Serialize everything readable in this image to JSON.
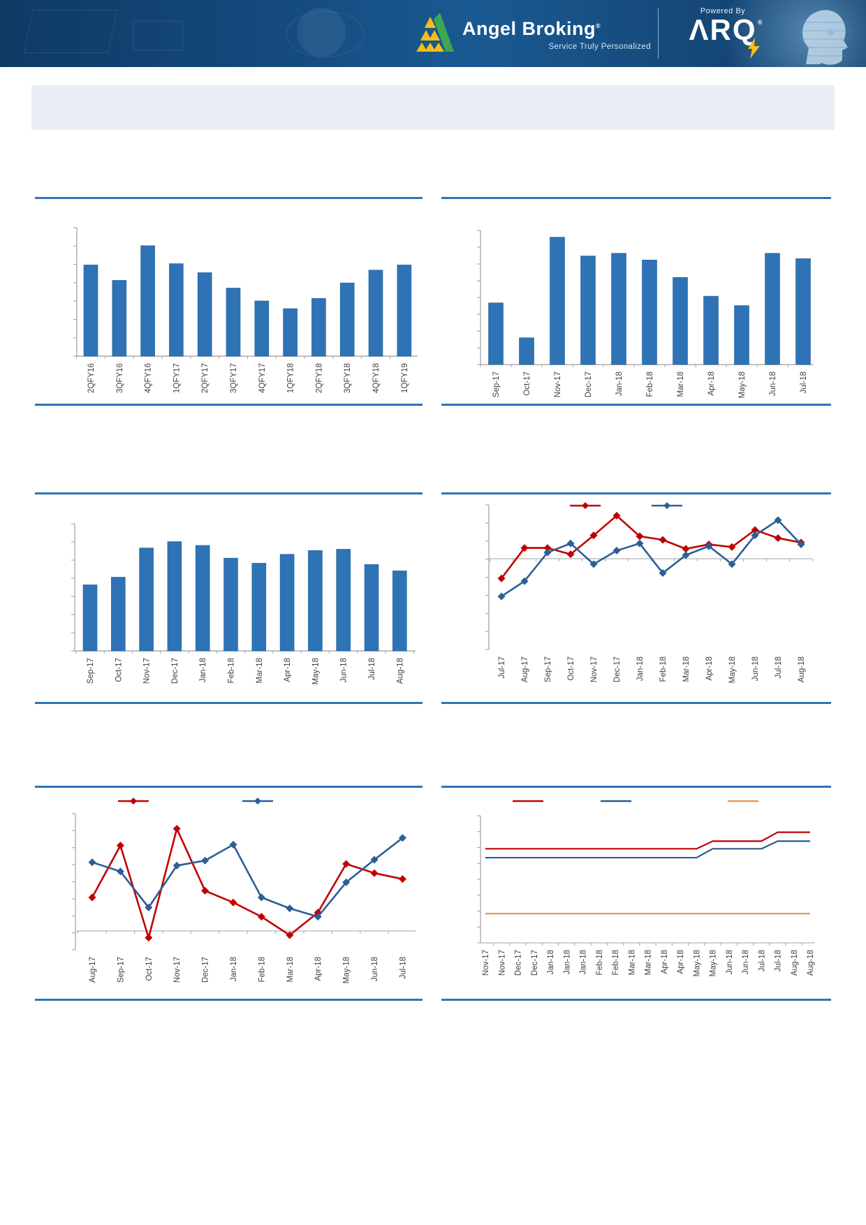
{
  "header": {
    "brand": "Angel Broking",
    "brand_reg": "®",
    "tagline": "Service Truly Personalized",
    "powered_by": "Powered By",
    "arq_text": "ΛRQ",
    "arq_reg": "®"
  },
  "colors": {
    "bar": "#2E73B5",
    "bar_edge": "#24619E",
    "red": "#C00000",
    "blue": "#2E5E95",
    "navy": "#305A85",
    "orange": "#E2995B",
    "divider": "#2E74B5",
    "axis": "#ABABAB",
    "zero_line": "#C0C0C0",
    "label": "#3F3F3F",
    "header_bg": "#14497C",
    "title_box": "#E9EFF5"
  },
  "chart_data": [
    {
      "id": "c1",
      "name": "quarterly-bar-chart",
      "type": "bar",
      "title": "",
      "categories": [
        "2QFY16",
        "3QFY16",
        "4QFY16",
        "1QFY17",
        "2QFY17",
        "3QFY17",
        "4QFY17",
        "1QFY18",
        "2QFY18",
        "3QFY18",
        "4QFY18",
        "1QFY19"
      ],
      "values_pct": [
        71,
        59,
        86,
        72,
        65,
        53,
        43,
        37,
        45,
        57,
        67,
        71
      ],
      "ylabel": "",
      "yticks_labeled": false,
      "grid": false
    },
    {
      "id": "c2",
      "name": "monthly-bar-chart-a",
      "type": "bar",
      "title": "",
      "categories": [
        "Sep-17",
        "Oct-17",
        "Nov-17",
        "Dec-17",
        "Jan-18",
        "Feb-18",
        "Mar-18",
        "Apr-18",
        "May-18",
        "Jun-18",
        "Jul-18"
      ],
      "values_pct": [
        46,
        20,
        95,
        81,
        83,
        78,
        65,
        51,
        44,
        83,
        79
      ],
      "ylabel": "",
      "yticks_labeled": false,
      "grid": false
    },
    {
      "id": "c3",
      "name": "monthly-bar-chart-b",
      "type": "bar",
      "title": "",
      "categories": [
        "Sep-17",
        "Oct-17",
        "Nov-17",
        "Dec-17",
        "Jan-18",
        "Feb-18",
        "Mar-18",
        "Apr-18",
        "May-18",
        "Jun-18",
        "Jul-18",
        "Aug-18"
      ],
      "values_pct": [
        52,
        58,
        81,
        86,
        83,
        73,
        69,
        76,
        79,
        80,
        68,
        63
      ],
      "ylabel": "",
      "yticks_labeled": false,
      "grid": false
    },
    {
      "id": "c4",
      "name": "dual-line-chart-a",
      "type": "line",
      "title": "",
      "categories": [
        "Jul-17",
        "Aug-17",
        "Sep-17",
        "Oct-17",
        "Nov-17",
        "Dec-17",
        "Jan-18",
        "Feb-18",
        "Mar-18",
        "Apr-18",
        "May-18",
        "Jun-18",
        "Jul-18",
        "Aug-18"
      ],
      "zero_line": true,
      "ylim_units": [
        -5.0,
        3.0
      ],
      "legend_labels_visible": false,
      "series": [
        {
          "name": "",
          "color_key": "red",
          "values": [
            -1.1,
            0.6,
            0.6,
            0.25,
            1.3,
            2.4,
            1.25,
            1.05,
            0.55,
            0.8,
            0.65,
            1.6,
            1.15,
            0.9
          ]
        },
        {
          "name": "",
          "color_key": "blue",
          "values": [
            -2.1,
            -1.25,
            0.35,
            0.85,
            -0.3,
            0.45,
            0.85,
            -0.8,
            0.2,
            0.7,
            -0.3,
            1.3,
            2.15,
            0.8
          ]
        }
      ]
    },
    {
      "id": "c5",
      "name": "dual-line-chart-b",
      "type": "line",
      "title": "",
      "categories": [
        "Aug-17",
        "Sep-17",
        "Oct-17",
        "Nov-17",
        "Dec-17",
        "Jan-18",
        "Feb-18",
        "Mar-18",
        "Apr-18",
        "May-18",
        "Jun-18",
        "Jul-18"
      ],
      "zero_line": true,
      "ylim_units": [
        -1.1,
        7.0
      ],
      "legend_labels_visible": false,
      "series": [
        {
          "name": "",
          "color_key": "red",
          "values": [
            2.0,
            5.1,
            -0.4,
            6.1,
            2.4,
            1.7,
            0.85,
            -0.25,
            1.1,
            4.0,
            3.45,
            3.1
          ]
        },
        {
          "name": "",
          "color_key": "blue",
          "values": [
            4.1,
            3.55,
            1.4,
            3.9,
            4.2,
            5.15,
            2.0,
            1.35,
            0.85,
            2.9,
            4.25,
            5.55
          ]
        }
      ]
    },
    {
      "id": "c6",
      "name": "step-line-chart",
      "type": "line",
      "title": "",
      "categories": [
        "Nov-17",
        "Nov-17",
        "Dec-17",
        "Dec-17",
        "Jan-18",
        "Jan-18",
        "Jan-18",
        "Feb-18",
        "Feb-18",
        "Mar-18",
        "Mar-18",
        "Apr-18",
        "Apr-18",
        "May-18",
        "May-18",
        "Jun-18",
        "Jun-18",
        "Jul-18",
        "Jul-18",
        "Aug-18",
        "Aug-18"
      ],
      "markers": false,
      "legend_labels_visible": false,
      "series": [
        {
          "name": "",
          "color_key": "red",
          "values_pct": [
            74,
            74,
            74,
            74,
            74,
            74,
            74,
            74,
            74,
            74,
            74,
            74,
            74,
            74,
            80,
            80,
            80,
            80,
            87,
            87,
            87
          ]
        },
        {
          "name": "",
          "color_key": "navy",
          "values_pct": [
            67,
            67,
            67,
            67,
            67,
            67,
            67,
            67,
            67,
            67,
            67,
            67,
            67,
            67,
            74,
            74,
            74,
            74,
            80,
            80,
            80
          ]
        },
        {
          "name": "",
          "color_key": "orange",
          "values_pct": [
            23,
            23,
            23,
            23,
            23,
            23,
            23,
            23,
            23,
            23,
            23,
            23,
            23,
            23,
            23,
            23,
            23,
            23,
            23,
            23,
            23
          ]
        }
      ]
    }
  ]
}
